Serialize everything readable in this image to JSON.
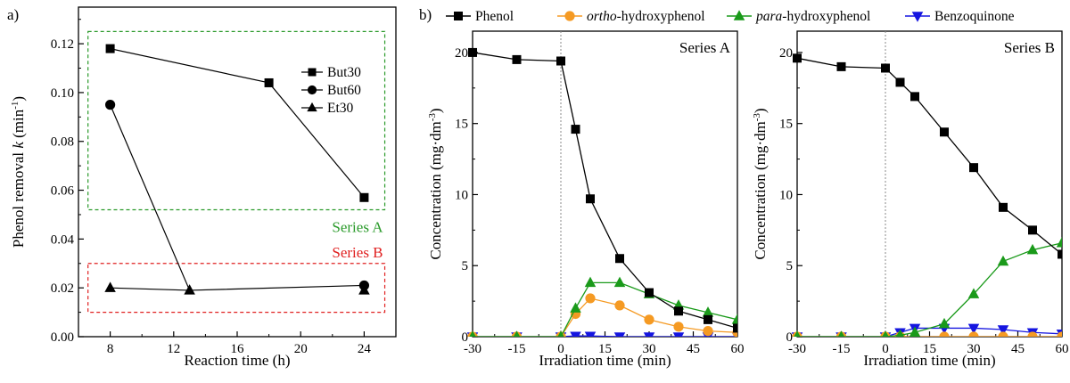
{
  "panel_labels": {
    "a": "a)",
    "b": "b)"
  },
  "chart_data": [
    {
      "id": "a",
      "type": "scatter",
      "xlabel": "Reaction time (h)",
      "ylabel": {
        "prefix": "Phenol removal ",
        "var": "k",
        "unit": " (min",
        "sup": "-1",
        "close": ")"
      },
      "xlim": [
        6,
        26
      ],
      "ylim": [
        0,
        0.135
      ],
      "xticks": [
        8,
        12,
        16,
        20,
        24
      ],
      "yticks": [
        0.0,
        0.02,
        0.04,
        0.06,
        0.08,
        0.1,
        0.12
      ],
      "ytick_labels": [
        "0.00",
        "0.02",
        "0.04",
        "0.06",
        "0.08",
        "0.10",
        "0.12"
      ],
      "grid": false,
      "legend": {
        "position": "top-right",
        "entries": [
          {
            "label": "But30",
            "marker": "square"
          },
          {
            "label": "But60",
            "marker": "circle"
          },
          {
            "label": "Et30",
            "marker": "triangle"
          }
        ]
      },
      "connections": [
        {
          "color": "#000000",
          "points": [
            [
              8,
              0.118
            ],
            [
              18,
              0.104
            ],
            [
              24,
              0.057
            ]
          ]
        },
        {
          "color": "#000000",
          "points": [
            [
              8,
              0.095
            ],
            [
              13,
              0.019
            ]
          ]
        },
        {
          "color": "#000000",
          "points": [
            [
              8,
              0.02
            ],
            [
              13,
              0.019
            ],
            [
              24,
              0.021
            ]
          ]
        }
      ],
      "series": [
        {
          "name": "But30",
          "marker": "square",
          "color": "#000000",
          "points": [
            [
              8,
              0.118
            ],
            [
              18,
              0.104
            ],
            [
              24,
              0.057
            ]
          ]
        },
        {
          "name": "But60",
          "marker": "circle",
          "color": "#000000",
          "points": [
            [
              8,
              0.095
            ],
            [
              24,
              0.021
            ]
          ]
        },
        {
          "name": "Et30",
          "marker": "triangle",
          "color": "#000000",
          "points": [
            [
              8,
              0.02
            ],
            [
              13,
              0.019
            ],
            [
              24,
              0.019
            ]
          ]
        }
      ],
      "regions": [
        {
          "label": "Series A",
          "color": "#2a9a2a",
          "x": [
            6.6,
            25.3
          ],
          "y": [
            0.052,
            0.125
          ]
        },
        {
          "label": "Series B",
          "color": "#e02020",
          "x": [
            6.6,
            25.3
          ],
          "y": [
            0.01,
            0.03
          ]
        }
      ]
    },
    {
      "id": "b-series-a",
      "type": "line",
      "annotation": "Series A",
      "xlabel": "Irradiation time (min)",
      "ylabel": {
        "prefix": "Concentration (mg·dm",
        "sup": "-3",
        "close": ")"
      },
      "xlim": [
        -30,
        60
      ],
      "ylim": [
        0,
        21.5
      ],
      "xticks": [
        -30,
        -15,
        0,
        15,
        30,
        45,
        60
      ],
      "yticks": [
        0,
        5,
        10,
        15,
        20
      ],
      "dashed_vline_x": 0,
      "grid": false,
      "series": [
        {
          "name": "Phenol",
          "color": "#000000",
          "marker": "square",
          "x": [
            -30,
            -15,
            0,
            5,
            10,
            20,
            30,
            40,
            50,
            60
          ],
          "y": [
            20.0,
            19.5,
            19.4,
            14.6,
            9.7,
            5.5,
            3.1,
            1.8,
            1.2,
            0.6
          ]
        },
        {
          "name": "ortho-hydroxyphenol",
          "color": "#f59a23",
          "marker": "circle",
          "x": [
            -30,
            -15,
            0,
            5,
            10,
            20,
            30,
            40,
            50,
            60
          ],
          "y": [
            0,
            0,
            0,
            1.6,
            2.7,
            2.2,
            1.2,
            0.7,
            0.4,
            0.3
          ]
        },
        {
          "name": "para-hydroxyphenol",
          "color": "#1a9a1a",
          "marker": "triangle",
          "x": [
            -30,
            -15,
            0,
            5,
            10,
            20,
            30,
            40,
            50,
            60
          ],
          "y": [
            0,
            0,
            0,
            2.0,
            3.8,
            3.8,
            3.0,
            2.2,
            1.7,
            1.2
          ]
        },
        {
          "name": "Benzoquinone",
          "color": "#1515e0",
          "marker": "triangle-down",
          "x": [
            -30,
            -15,
            0,
            5,
            10,
            20,
            30,
            40,
            50,
            60
          ],
          "y": [
            0,
            0,
            0,
            0.05,
            0.05,
            0,
            0,
            0,
            0,
            0
          ]
        }
      ]
    },
    {
      "id": "b-series-b",
      "type": "line",
      "annotation": "Series B",
      "xlabel": "Irradiation time (min)",
      "ylabel": {
        "prefix": "Concentration (mg·dm",
        "sup": "-3",
        "close": ")"
      },
      "xlim": [
        -30,
        60
      ],
      "ylim": [
        0,
        21.5
      ],
      "xticks": [
        -30,
        -15,
        0,
        15,
        30,
        45,
        60
      ],
      "yticks": [
        0,
        5,
        10,
        15,
        20
      ],
      "dashed_vline_x": 0,
      "grid": false,
      "series": [
        {
          "name": "Phenol",
          "color": "#000000",
          "marker": "square",
          "x": [
            -30,
            -15,
            0,
            5,
            10,
            20,
            30,
            40,
            50,
            60
          ],
          "y": [
            19.6,
            19.0,
            18.9,
            17.9,
            16.9,
            14.4,
            11.9,
            9.1,
            7.5,
            5.8
          ]
        },
        {
          "name": "ortho-hydroxyphenol",
          "color": "#f59a23",
          "marker": "circle",
          "x": [
            -30,
            -15,
            0,
            5,
            10,
            20,
            30,
            40,
            50,
            60
          ],
          "y": [
            0,
            0,
            0,
            0,
            0,
            0,
            0,
            0,
            0,
            0
          ]
        },
        {
          "name": "para-hydroxyphenol",
          "color": "#1a9a1a",
          "marker": "triangle",
          "x": [
            -30,
            -15,
            0,
            5,
            10,
            20,
            30,
            40,
            50,
            60
          ],
          "y": [
            0,
            0,
            0,
            0.1,
            0.3,
            0.9,
            3.0,
            5.3,
            6.1,
            6.6
          ]
        },
        {
          "name": "Benzoquinone",
          "color": "#1515e0",
          "marker": "triangle-down",
          "x": [
            -30,
            -15,
            0,
            5,
            10,
            20,
            30,
            40,
            50,
            60
          ],
          "y": [
            0,
            0,
            0,
            0.3,
            0.6,
            0.6,
            0.6,
            0.5,
            0.3,
            0.2
          ]
        }
      ]
    }
  ],
  "legend_b": [
    {
      "series": "Phenol",
      "parts": [
        {
          "t": "Phenol",
          "i": false
        }
      ]
    },
    {
      "series": "ortho-hydroxyphenol",
      "parts": [
        {
          "t": "ortho",
          "i": true
        },
        {
          "t": "-hydroxyphenol",
          "i": false
        }
      ]
    },
    {
      "series": "para-hydroxyphenol",
      "parts": [
        {
          "t": "para",
          "i": true
        },
        {
          "t": "-hydroxyphenol",
          "i": false
        }
      ]
    },
    {
      "series": "Benzoquinone",
      "parts": [
        {
          "t": "Benzoquinone",
          "i": false
        }
      ]
    }
  ]
}
